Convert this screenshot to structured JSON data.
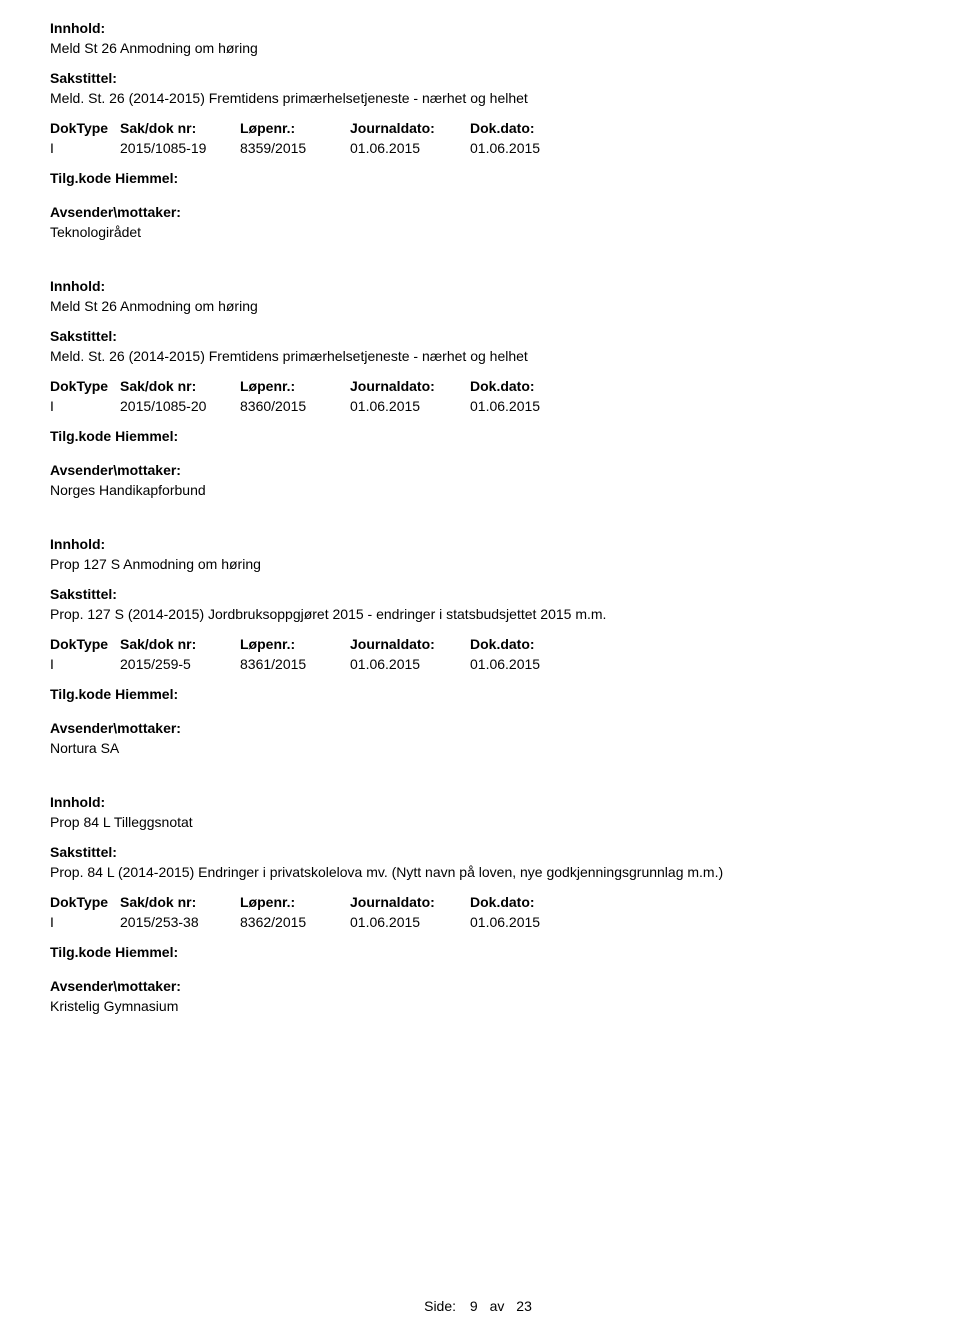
{
  "labels": {
    "innhold": "Innhold:",
    "sakstittel": "Sakstittel:",
    "doktype": "DokType",
    "sakdok": "Sak/dok nr:",
    "lopenr": "Løpenr.:",
    "journaldato": "Journaldato:",
    "dokdato": "Dok.dato:",
    "tilgkode": "Tilg.kode",
    "hiemmel": "Hiemmel:",
    "avsender": "Avsender\\mottaker:"
  },
  "records": [
    {
      "innhold": "Meld St 26 Anmodning om høring",
      "sakstittel": "Meld. St. 26 (2014-2015) Fremtidens primærhelsetjeneste - nærhet og helhet",
      "doktype": "I",
      "sakdok": "2015/1085-19",
      "lopenr": "8359/2015",
      "journaldato": "01.06.2015",
      "dokdato": "01.06.2015",
      "avsender": "Teknologirådet"
    },
    {
      "innhold": "Meld St 26 Anmodning om høring",
      "sakstittel": "Meld. St. 26 (2014-2015) Fremtidens primærhelsetjeneste - nærhet og helhet",
      "doktype": "I",
      "sakdok": "2015/1085-20",
      "lopenr": "8360/2015",
      "journaldato": "01.06.2015",
      "dokdato": "01.06.2015",
      "avsender": "Norges Handikapforbund"
    },
    {
      "innhold": "Prop 127 S Anmodning om høring",
      "sakstittel": "Prop. 127 S (2014-2015) Jordbruksoppgjøret 2015 - endringer i statsbudsjettet 2015 m.m.",
      "doktype": "I",
      "sakdok": "2015/259-5",
      "lopenr": "8361/2015",
      "journaldato": "01.06.2015",
      "dokdato": "01.06.2015",
      "avsender": "Nortura SA"
    },
    {
      "innhold": "Prop 84 L Tilleggsnotat",
      "sakstittel": "Prop. 84 L (2014-2015) Endringer i privatskolelova mv. (Nytt navn på loven, nye godkjenningsgrunnlag m.m.)",
      "doktype": "I",
      "sakdok": "2015/253-38",
      "lopenr": "8362/2015",
      "journaldato": "01.06.2015",
      "dokdato": "01.06.2015",
      "avsender": "Kristelig Gymnasium"
    }
  ],
  "footer": {
    "label": "Side:",
    "current": "9",
    "separator": "av",
    "total": "23"
  }
}
